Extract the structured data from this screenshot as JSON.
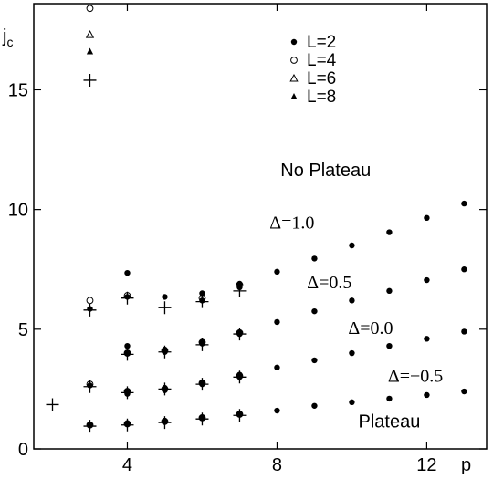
{
  "chart_data": {
    "type": "scatter",
    "title": "",
    "ylabel": "j",
    "ylabel_sub": "c",
    "xlabel": "p",
    "xlim": [
      1.5,
      13.6
    ],
    "ylim": [
      0,
      18.6
    ],
    "xticks": [
      4,
      8,
      12
    ],
    "xtick_labels": [
      "4",
      "8",
      "12"
    ],
    "yticks": [
      0,
      5,
      10,
      15
    ],
    "ytick_labels": [
      "0",
      "5",
      "10",
      "15"
    ],
    "grid": false,
    "legend_position": "top-right",
    "legend": [
      {
        "label": "L=2",
        "marker": "filled-circle"
      },
      {
        "label": "L=4",
        "marker": "open-circle"
      },
      {
        "label": "L=6",
        "marker": "open-triangle"
      },
      {
        "label": "L=8",
        "marker": "filled-triangle"
      }
    ],
    "annotations": [
      {
        "text": "No Plateau",
        "x": 9.3,
        "y": 11.4,
        "style": "sans"
      },
      {
        "text": "Δ=1.0",
        "x": 8.4,
        "y": 9.2,
        "style": "serif"
      },
      {
        "text": "Δ=0.5",
        "x": 9.4,
        "y": 6.7,
        "style": "serif"
      },
      {
        "text": "Δ=0.0",
        "x": 10.5,
        "y": 4.8,
        "style": "serif"
      },
      {
        "text": "Δ=−0.5",
        "x": 11.7,
        "y": 2.8,
        "style": "serif"
      },
      {
        "text": "Plateau",
        "x": 11.0,
        "y": 0.9,
        "style": "sans"
      }
    ],
    "series": [
      {
        "marker": "filled-circle",
        "points": [
          [
            4,
            7.35
          ],
          [
            5,
            6.35
          ],
          [
            6,
            6.5
          ],
          [
            7,
            6.9
          ],
          [
            8,
            7.4
          ],
          [
            9,
            7.95
          ],
          [
            10,
            8.5
          ],
          [
            11,
            9.05
          ],
          [
            12,
            9.65
          ],
          [
            13,
            10.25
          ],
          [
            8,
            5.3
          ],
          [
            9,
            5.75
          ],
          [
            10,
            6.2
          ],
          [
            11,
            6.6
          ],
          [
            12,
            7.05
          ],
          [
            13,
            7.5
          ],
          [
            4,
            4.3
          ],
          [
            5,
            4.15
          ],
          [
            6,
            4.45
          ],
          [
            7,
            4.85
          ],
          [
            8,
            3.4
          ],
          [
            9,
            3.7
          ],
          [
            10,
            4.0
          ],
          [
            11,
            4.3
          ],
          [
            12,
            4.6
          ],
          [
            13,
            4.9
          ],
          [
            3,
            2.65
          ],
          [
            4,
            2.4
          ],
          [
            5,
            2.55
          ],
          [
            6,
            2.75
          ],
          [
            7,
            3.1
          ],
          [
            8,
            1.6
          ],
          [
            9,
            1.8
          ],
          [
            10,
            1.95
          ],
          [
            11,
            2.1
          ],
          [
            12,
            2.25
          ],
          [
            13,
            2.4
          ],
          [
            3,
            1.0
          ],
          [
            4,
            1.05
          ],
          [
            5,
            1.15
          ],
          [
            6,
            1.3
          ],
          [
            7,
            1.45
          ],
          [
            3,
            5.85
          ],
          [
            4,
            6.35
          ],
          [
            6,
            6.2
          ],
          [
            7,
            6.75
          ],
          [
            4,
            4.0
          ],
          [
            5,
            4.05
          ],
          [
            6,
            4.4
          ],
          [
            7,
            4.8
          ],
          [
            4,
            2.3
          ],
          [
            5,
            2.45
          ],
          [
            6,
            2.7
          ],
          [
            7,
            3.0
          ]
        ]
      },
      {
        "marker": "open-circle",
        "points": [
          [
            3,
            18.4
          ],
          [
            3,
            6.2
          ],
          [
            4,
            6.4
          ],
          [
            6,
            6.3
          ],
          [
            7,
            6.85
          ],
          [
            3,
            2.7
          ],
          [
            4,
            4.0
          ],
          [
            5,
            4.1
          ],
          [
            6,
            4.45
          ],
          [
            7,
            4.85
          ],
          [
            4,
            2.4
          ],
          [
            5,
            2.5
          ],
          [
            6,
            2.75
          ],
          [
            7,
            3.05
          ],
          [
            3,
            1.0
          ],
          [
            4,
            1.05
          ],
          [
            5,
            1.15
          ],
          [
            6,
            1.3
          ],
          [
            7,
            1.45
          ]
        ]
      },
      {
        "marker": "open-triangle",
        "points": [
          [
            3,
            17.3
          ]
        ]
      },
      {
        "marker": "filled-triangle",
        "points": [
          [
            3,
            16.6
          ]
        ]
      },
      {
        "marker": "plus",
        "points": [
          [
            3,
            15.4
          ],
          [
            2,
            1.85
          ],
          [
            3,
            5.8
          ],
          [
            4,
            6.3
          ],
          [
            5,
            5.9
          ],
          [
            6,
            6.15
          ],
          [
            7,
            6.6
          ],
          [
            3,
            2.6
          ],
          [
            4,
            2.35
          ],
          [
            5,
            2.5
          ],
          [
            6,
            2.7
          ],
          [
            7,
            3.0
          ],
          [
            4,
            3.95
          ],
          [
            5,
            4.05
          ],
          [
            6,
            4.35
          ],
          [
            7,
            4.8
          ],
          [
            3,
            0.95
          ],
          [
            4,
            1.0
          ],
          [
            5,
            1.1
          ],
          [
            6,
            1.25
          ],
          [
            7,
            1.4
          ]
        ]
      }
    ]
  }
}
